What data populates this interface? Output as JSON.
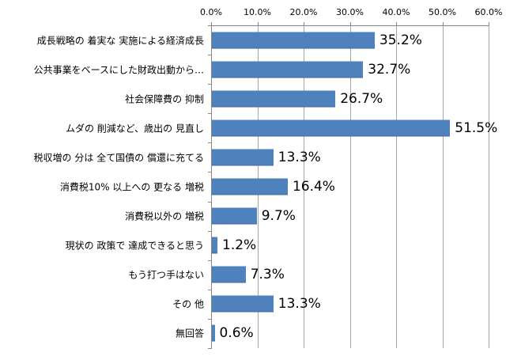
{
  "chart_data": {
    "type": "bar",
    "orientation": "horizontal",
    "title": "",
    "xlabel": "",
    "ylabel": "",
    "xlim": [
      0,
      60
    ],
    "x_ticks": [
      "0.0%",
      "10.0%",
      "20.0%",
      "30.0%",
      "40.0%",
      "50.0%",
      "60.0%"
    ],
    "x_axis_position": "top",
    "grid": true,
    "legend": null,
    "bar_color": "#4f81bd",
    "categories": [
      "成長戦略の 着実な 実施による経済成長",
      "公共事業をベースにした財政出動から…",
      "社会保障費の 抑制",
      "ムダの 削減など、歳出の 見直し",
      "税収増の 分は 全て国債の 償還に充てる",
      "消費税10% 以上への 更なる 増税",
      "消費税以外の 増税",
      "現状の 政策で 達成できると思う",
      "もう打つ手はない",
      "その 他",
      "無回答"
    ],
    "values": [
      35.2,
      32.7,
      26.7,
      51.5,
      13.3,
      16.4,
      9.7,
      1.2,
      7.3,
      13.3,
      0.6
    ],
    "value_labels": [
      "35.2%",
      "32.7%",
      "26.7%",
      "51.5%",
      "13.3%",
      "16.4%",
      "9.7%",
      "1.2%",
      "7.3%",
      "13.3%",
      "0.6%"
    ]
  }
}
